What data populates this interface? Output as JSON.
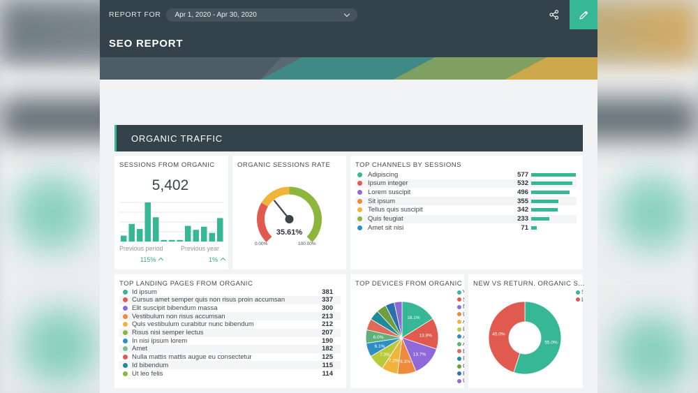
{
  "header": {
    "report_for_label": "REPORT FOR",
    "date_range": "Apr 1, 2020 - Apr 30, 2020",
    "title": "SEO REPORT"
  },
  "icons": {
    "share": "share-icon",
    "edit": "pencil-icon",
    "dropdown": "chevron-down-icon"
  },
  "colors": {
    "header_bg": "#34434b",
    "accent": "#36b796",
    "red": "#e05a4f",
    "yellow": "#f0b43a",
    "purple": "#8e6ad8",
    "orange": "#ef8a3c",
    "blue": "#2f8fc4",
    "olive": "#8cb63c"
  },
  "section": {
    "title": "ORGANIC TRAFFIC"
  },
  "sessions_from_organic": {
    "title": "SESSIONS FROM ORGANIC",
    "value": "5,402",
    "bars": [
      0.15,
      0.45,
      0.32,
      1.0,
      0.62,
      0.04,
      0.04,
      0.04,
      0.4,
      0.3,
      0.38,
      0.22,
      0.6
    ],
    "previous_period_label": "Previous period",
    "previous_period_value": "115%",
    "previous_year_label": "Previous year",
    "previous_year_value": "1%"
  },
  "organic_sessions_rate": {
    "title": "ORGANIC SESSIONS RATE",
    "value": "35.61%",
    "percent": 35.61,
    "min_label": "0.00%",
    "max_label": "100.00%"
  },
  "top_channels": {
    "title": "TOP CHANNELS BY SESSIONS",
    "items": [
      {
        "label": "Adipiscing",
        "value": "577",
        "num": 577,
        "color": "#36b796"
      },
      {
        "label": "Ipsum integer",
        "value": "532",
        "num": 532,
        "color": "#e05a4f"
      },
      {
        "label": "Lorem suscipit",
        "value": "496",
        "num": 496,
        "color": "#8e6ad8"
      },
      {
        "label": "Sit ipsum",
        "value": "355",
        "num": 355,
        "color": "#ef8a3c"
      },
      {
        "label": "Tellus quis suscipit",
        "value": "342",
        "num": 342,
        "color": "#f0b43a"
      },
      {
        "label": "Quis feugiat",
        "value": "233",
        "num": 233,
        "color": "#8cb63c"
      },
      {
        "label": "Amet sit nisi",
        "value": "71",
        "num": 71,
        "color": "#2f8fc4"
      }
    ]
  },
  "top_landing_pages": {
    "title": "TOP LANDING PAGES FROM ORGANIC",
    "items": [
      {
        "label": "Id ipsum",
        "value": "381",
        "color": "#36b796"
      },
      {
        "label": "Cursus amet semper quis non risus proin accumsan",
        "value": "337",
        "color": "#e05a4f"
      },
      {
        "label": "Elit suscipit bibendum massa",
        "value": "300",
        "color": "#8e6ad8"
      },
      {
        "label": "Vestibulum non risus accumsan",
        "value": "213",
        "color": "#ef8a3c"
      },
      {
        "label": "Quis vestibulum curabitur nunc bibendum",
        "value": "212",
        "color": "#f0b43a"
      },
      {
        "label": "Risus nisi semper lectus",
        "value": "207",
        "color": "#8cb63c"
      },
      {
        "label": "In nisi ipsum lorem",
        "value": "190",
        "color": "#2f8fc4"
      },
      {
        "label": "Amet",
        "value": "182",
        "color": "#7fbf8a"
      },
      {
        "label": "Nulla mattis mattis augue eu consectetur",
        "value": "125",
        "color": "#e05a4f"
      },
      {
        "label": "Id bibendum",
        "value": "115",
        "color": "#1f8a9a"
      },
      {
        "label": "Ut leo felis",
        "value": "114",
        "color": "#8cb63c"
      }
    ]
  },
  "top_devices": {
    "title": "TOP DEVICES FROM ORGANIC",
    "slices": [
      {
        "value": 16.1,
        "label": "16.1%",
        "color": "#36b796"
      },
      {
        "value": 13.9,
        "label": "13.9%",
        "color": "#e05a4f"
      },
      {
        "value": 13.7,
        "label": "13.7%",
        "color": "#8e6ad8"
      },
      {
        "value": 8.3,
        "label": "8.3%",
        "color": "#ef8a3c"
      },
      {
        "value": 7.2,
        "label": "7.2%",
        "color": "#f0b43a"
      },
      {
        "value": 7.3,
        "label": "7.3%",
        "color": "#b8c93c"
      },
      {
        "value": 6.1,
        "label": "6.1%",
        "color": "#2f8fc4"
      },
      {
        "value": 6.0,
        "label": "6.0%",
        "color": "#5fb07a"
      },
      {
        "value": 5.0,
        "label": "",
        "color": "#e06a5a"
      },
      {
        "value": 4.5,
        "label": "",
        "color": "#1f8a9a"
      },
      {
        "value": 4.4,
        "label": "",
        "color": "#6f9c3c"
      },
      {
        "value": 4.0,
        "label": "",
        "color": "#2a6fb0"
      },
      {
        "value": 3.5,
        "label": "",
        "color": "#8e6ad8"
      }
    ],
    "legend_letters": [
      "V",
      "S",
      "N",
      "U",
      "A",
      "L",
      "A",
      "A",
      "E",
      "I",
      "C",
      "F",
      "U"
    ]
  },
  "new_vs_returning": {
    "title": "NEW VS RETURN. ORGANIC S...",
    "slices": [
      {
        "value": 55.0,
        "label": "55.0%",
        "color": "#36b796"
      },
      {
        "value": 45.0,
        "label": "45.0%",
        "color": "#e05a4f"
      }
    ],
    "legend_letters": [
      "S",
      "L"
    ]
  }
}
